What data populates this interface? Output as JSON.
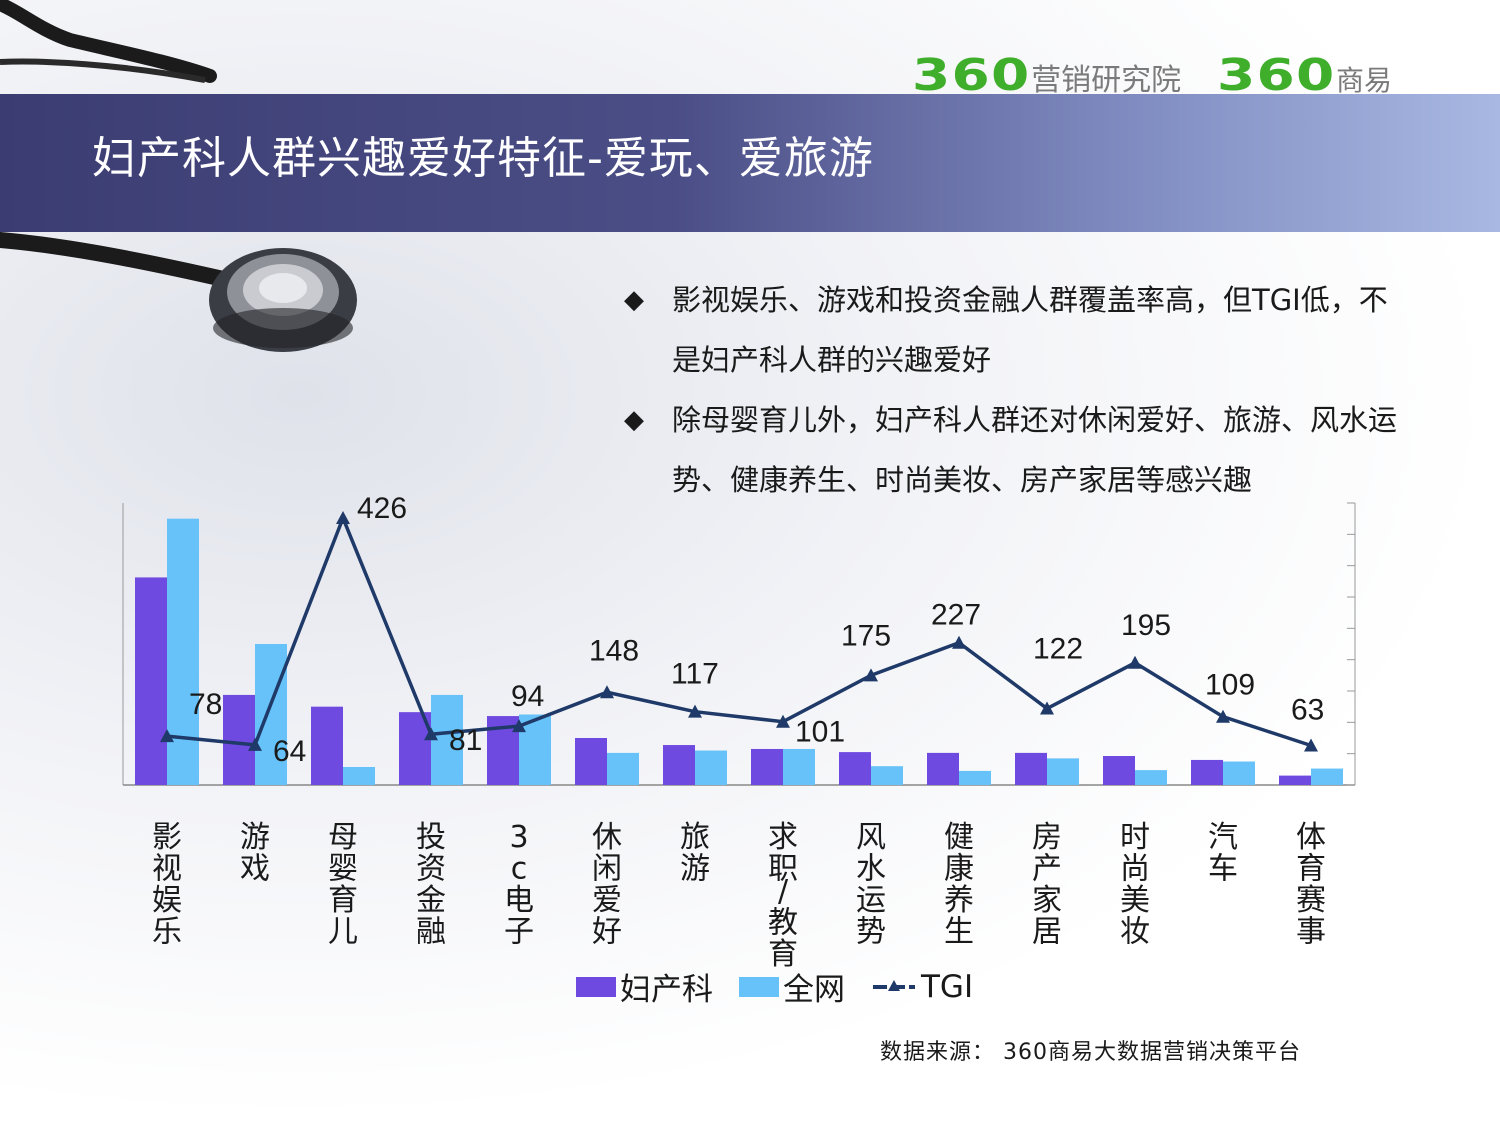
{
  "header": {
    "logo1_number": "360",
    "logo1_text": "营销研究院",
    "logo2_number": "360",
    "logo2_text": "商易",
    "title": "妇产科人群兴趣爱好特征-爱玩、爱旅游"
  },
  "bullets": [
    {
      "text": "影视娱乐、游戏和投资金融人群覆盖率高，但TGI低，不是妇产科人群的兴趣爱好"
    },
    {
      "text": "除母婴育儿外，妇产科人群还对休闲爱好、旅游、风水运势、健康养生、时尚美妆、房产家居等感兴趣"
    }
  ],
  "bullet_mark": "◆",
  "colors": {
    "fuchanke": "#6f4ae0",
    "quanwang": "#66c2f8",
    "tgi": "#1f3a68",
    "logo_green": "#3fae2a"
  },
  "chart_data": {
    "type": "bar+line",
    "categories": [
      "影视娱乐",
      "游戏",
      "母婴育儿",
      "投资金融",
      "3c电子",
      "休闲爱好",
      "旅游",
      "求职/教育",
      "风水运势",
      "健康养生",
      "房产家居",
      "时尚美妆",
      "汽车",
      "体育赛事"
    ],
    "series": [
      {
        "name": "妇产科",
        "type": "bar",
        "axis": "left",
        "values": [
          26.5,
          11.5,
          10.0,
          9.3,
          8.8,
          6.0,
          5.1,
          4.6,
          4.2,
          4.1,
          4.1,
          3.7,
          3.2,
          1.2
        ]
      },
      {
        "name": "全网",
        "type": "bar",
        "axis": "left",
        "values": [
          34.0,
          18.0,
          2.3,
          11.5,
          9.0,
          4.1,
          4.4,
          4.6,
          2.4,
          1.8,
          3.4,
          1.9,
          3.0,
          2.1
        ]
      },
      {
        "name": "TGI",
        "type": "line",
        "axis": "right",
        "values": [
          78,
          64,
          426,
          81,
          94,
          148,
          117,
          101,
          175,
          227,
          122,
          195,
          109,
          63
        ]
      }
    ],
    "ylim_left": [
      0,
      36
    ],
    "ylim_right": [
      0,
      450
    ],
    "legend": "bottom",
    "grid": false
  },
  "source": "数据来源：  360商易大数据营销决策平台"
}
